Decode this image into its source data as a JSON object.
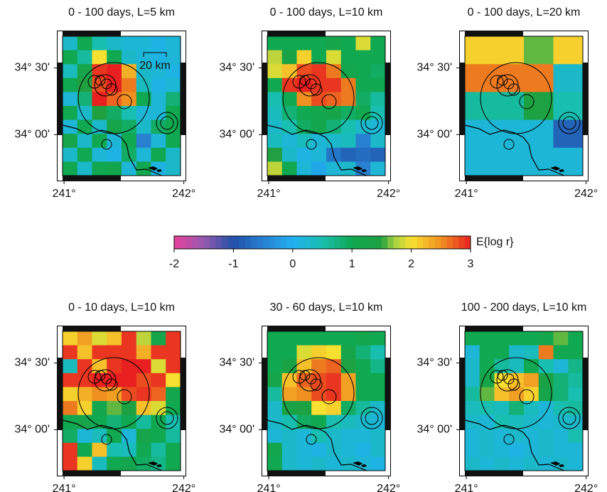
{
  "chart_data": [
    {
      "type": "heatmap",
      "title": "0 - 100 days, L=5 km",
      "annotation": "20 km",
      "xlim": [
        240.94,
        242.02
      ],
      "ylim": [
        33.65,
        34.78
      ],
      "xticks": [
        {
          "value": 241,
          "label": "241°"
        },
        {
          "value": 242,
          "label": "242°"
        }
      ],
      "yticks": [
        {
          "value": 34.5,
          "label": "34° 30'"
        },
        {
          "value": 34.0,
          "label": "34° 00'"
        }
      ],
      "values": [
        [
          0.3,
          1,
          0.5,
          0.3,
          0.2,
          0.2,
          0.1,
          0.2
        ],
        [
          1,
          0.6,
          2,
          1,
          0.3,
          0.2,
          0.1,
          0.2
        ],
        [
          0.4,
          1.2,
          2.9,
          3,
          2.3,
          0.3,
          0.2,
          0.1
        ],
        [
          1,
          1.5,
          2.8,
          3,
          2.6,
          0.4,
          0.1,
          0.2
        ],
        [
          0.2,
          0.8,
          3,
          2.7,
          2.5,
          1,
          0.2,
          0.8
        ],
        [
          1,
          0.3,
          1.5,
          0.9,
          0.5,
          0.2,
          0.2,
          1
        ],
        [
          0.2,
          1,
          0.3,
          1.2,
          0.9,
          0.3,
          0.9,
          1
        ],
        [
          1.2,
          0.3,
          1,
          0.2,
          1,
          -0.5,
          0.2,
          1
        ],
        [
          0.3,
          1,
          0.2,
          0.1,
          0.9,
          0.2,
          1,
          0.3
        ],
        [
          1,
          0.3,
          1,
          1.1,
          0.2,
          1,
          0.1,
          0.3
        ]
      ]
    },
    {
      "type": "heatmap",
      "title": "0 - 100 days, L=10 km",
      "xlim": [
        240.94,
        242.02
      ],
      "ylim": [
        33.65,
        34.78
      ],
      "xticks": [
        {
          "value": 241,
          "label": "241°"
        },
        {
          "value": 242,
          "label": "242°"
        }
      ],
      "yticks": [
        {
          "value": 34.5,
          "label": "34° 30'"
        },
        {
          "value": 34.0,
          "label": "34° 00'"
        }
      ],
      "values": [
        [
          1,
          1,
          1,
          1,
          1.2,
          1,
          1.9,
          1
        ],
        [
          1.8,
          1.3,
          2.1,
          1,
          1.9,
          1,
          1,
          1
        ],
        [
          1.9,
          2.2,
          2.8,
          2.9,
          2.6,
          1.1,
          1,
          0.9
        ],
        [
          1,
          2.9,
          3,
          2.9,
          2.9,
          2.6,
          1,
          1
        ],
        [
          0.5,
          1,
          2.5,
          2.8,
          2.7,
          2.6,
          0.9,
          0.6
        ],
        [
          0.4,
          0.8,
          1,
          1.1,
          1.2,
          0.9,
          1,
          0.5
        ],
        [
          0.3,
          0.5,
          0.9,
          1.1,
          0.8,
          0.5,
          0.3,
          0.2
        ],
        [
          0.4,
          0.2,
          0.4,
          0.2,
          0.3,
          0.4,
          -0.5,
          0.3
        ],
        [
          1.5,
          0.3,
          0.1,
          0.2,
          -0.6,
          -0.8,
          -0.7,
          -0.8
        ],
        [
          1.8,
          1,
          0.2,
          -0.1,
          0.2,
          0.3,
          -0.5,
          0.2
        ]
      ]
    },
    {
      "type": "heatmap",
      "title": "0 - 100 days, L=20 km",
      "xlim": [
        240.94,
        242.02
      ],
      "ylim": [
        33.65,
        34.78
      ],
      "xticks": [
        {
          "value": 241,
          "label": "241°"
        },
        {
          "value": 242,
          "label": "242°"
        }
      ],
      "yticks": [
        {
          "value": 34.5,
          "label": "34° 30'"
        },
        {
          "value": 34.0,
          "label": "34° 00'"
        }
      ],
      "values": [
        [
          2.1,
          2.1,
          1.6,
          2.1
        ],
        [
          2.6,
          2.6,
          2.6,
          0.3
        ],
        [
          0.6,
          0.6,
          1.4,
          0.5
        ],
        [
          0.2,
          0.2,
          0.2,
          -0.8
        ],
        [
          0.2,
          0.2,
          0.2,
          0.2
        ]
      ]
    },
    {
      "type": "heatmap",
      "title": "0 - 10 days, L=10 km",
      "xlim": [
        240.94,
        242.02
      ],
      "ylim": [
        33.65,
        34.78
      ],
      "xticks": [
        {
          "value": 241,
          "label": "241°"
        },
        {
          "value": 242,
          "label": "242°"
        }
      ],
      "yticks": [
        {
          "value": 34.5,
          "label": "34° 30'"
        },
        {
          "value": 34.0,
          "label": "34° 00'"
        }
      ],
      "values": [
        [
          2.1,
          2.4,
          1.9,
          2.2,
          2.9,
          1.8,
          1.2,
          2.9
        ],
        [
          2.9,
          2.2,
          2.9,
          2.9,
          2.9,
          2.3,
          2.9,
          2.9
        ],
        [
          0.4,
          2.9,
          2.2,
          2.9,
          3,
          3,
          1.9,
          2.9
        ],
        [
          2.9,
          2.9,
          3,
          3,
          3,
          2.8,
          2.9,
          2
        ],
        [
          2.1,
          2.3,
          2.5,
          2.4,
          2.8,
          2.9,
          2.7,
          1.1
        ],
        [
          2.6,
          2.1,
          1.1,
          1.6,
          1.4,
          2.2,
          1.9,
          1
        ],
        [
          1,
          1.2,
          1,
          0.8,
          1,
          0.6,
          1,
          0.5
        ],
        [
          0.9,
          0.2,
          0.4,
          1,
          0.2,
          1.2,
          1,
          0.6
        ],
        [
          2.9,
          1,
          2.2,
          0.5,
          0.4,
          1,
          0.6,
          1
        ],
        [
          2.9,
          2.1,
          0.4,
          1,
          1.1,
          0.9,
          0.7,
          1
        ]
      ]
    },
    {
      "type": "heatmap",
      "title": "30 - 60 days, L=10 km",
      "xlim": [
        240.94,
        242.02
      ],
      "ylim": [
        33.65,
        34.78
      ],
      "xticks": [
        {
          "value": 241,
          "label": "241°"
        },
        {
          "value": 242,
          "label": "242°"
        }
      ],
      "yticks": [
        {
          "value": 34.5,
          "label": "34° 30'"
        },
        {
          "value": 34.0,
          "label": "34° 00'"
        }
      ],
      "values": [
        [
          1,
          1,
          1,
          1,
          1,
          1,
          1.1,
          1
        ],
        [
          1,
          1,
          1.9,
          2.1,
          2,
          1.2,
          0.8,
          0.5
        ],
        [
          1,
          1.3,
          2.2,
          2.6,
          2.7,
          1.4,
          1,
          0.7
        ],
        [
          1.2,
          2.2,
          2.7,
          2.8,
          2.9,
          2.4,
          1,
          1
        ],
        [
          0.6,
          2.4,
          2.5,
          2.8,
          2.9,
          2.4,
          1,
          1
        ],
        [
          0.3,
          1.3,
          1.4,
          2,
          2.1,
          0.9,
          0.6,
          0.3
        ],
        [
          0.3,
          0.5,
          0.9,
          1,
          0.5,
          0.4,
          0.3,
          0.2
        ],
        [
          0.2,
          0.3,
          0.2,
          0.5,
          0.3,
          0.2,
          0.2,
          0.3
        ],
        [
          1.1,
          0.3,
          0.2,
          0.1,
          0.3,
          0.2,
          0.1,
          0.3
        ],
        [
          1,
          0.3,
          0.2,
          0.3,
          0.2,
          0.3,
          0.2,
          0.1
        ]
      ]
    },
    {
      "type": "heatmap",
      "title": "100 - 200 days, L=10 km",
      "xlim": [
        240.94,
        242.02
      ],
      "ylim": [
        33.65,
        34.78
      ],
      "xticks": [
        {
          "value": 241,
          "label": "241°"
        },
        {
          "value": 242,
          "label": "242°"
        }
      ],
      "yticks": [
        {
          "value": 34.5,
          "label": "34° 30'"
        },
        {
          "value": 34.0,
          "label": "34° 00'"
        }
      ],
      "values": [
        [
          1,
          1,
          1,
          1,
          1,
          1.1,
          1.6,
          1
        ],
        [
          0.2,
          1,
          1,
          0.3,
          0.4,
          2.6,
          1,
          1
        ],
        [
          0.3,
          1,
          0.6,
          0.4,
          1,
          0.5,
          0.2,
          0.7
        ],
        [
          0.3,
          1.2,
          2,
          2.2,
          2.4,
          1.3,
          0.8,
          0.6
        ],
        [
          0.6,
          1.6,
          2.2,
          2.4,
          2.1,
          1.2,
          0.8,
          0.5
        ],
        [
          0.4,
          0.5,
          0.4,
          0.8,
          0.4,
          0.2,
          0.5,
          0.6
        ],
        [
          0.3,
          0.2,
          0.5,
          0.4,
          0.3,
          0.2,
          0.3,
          0.3
        ],
        [
          0.2,
          0.3,
          0.2,
          0.3,
          0.2,
          0.3,
          0.2,
          0.5
        ],
        [
          0.2,
          0.3,
          0.2,
          0.1,
          0.2,
          0.3,
          0.2,
          0.2
        ],
        [
          0.3,
          0.2,
          0.3,
          0.2,
          0.3,
          0.2,
          0.3,
          0.2
        ]
      ]
    }
  ],
  "colorbar": {
    "label": "E{log r}",
    "lim": [
      -2,
      3
    ],
    "ticks": [
      -2,
      -1,
      0,
      1,
      2,
      3
    ]
  }
}
